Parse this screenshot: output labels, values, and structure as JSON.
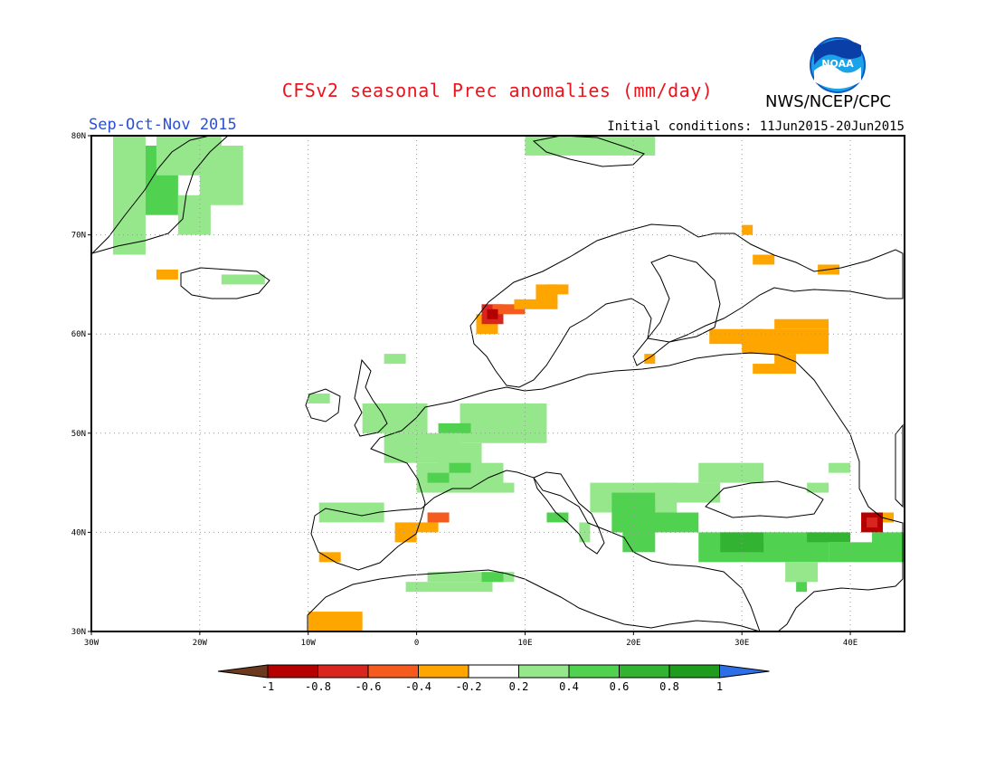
{
  "header": {
    "title": "CFSv2 seasonal Prec anomalies (mm/day)",
    "season": "Sep-Oct-Nov 2015",
    "initial_conditions": "Initial conditions: 11Jun2015-20Jun2015",
    "organization": "NWS/NCEP/CPC",
    "logo_text": "NOAA"
  },
  "map": {
    "region": "Europe",
    "lon_range": [
      -30,
      45
    ],
    "lat_range": [
      30,
      80
    ],
    "lon_ticks": [
      "30W",
      "20W",
      "10W",
      "0",
      "10E",
      "20E",
      "30E",
      "40E"
    ],
    "lat_ticks": [
      "80N",
      "70N",
      "60N",
      "50N",
      "40N",
      "30N"
    ],
    "grid": "dotted"
  },
  "legend": {
    "labels": [
      "-1",
      "-0.8",
      "-0.6",
      "-0.4",
      "-0.2",
      "0.2",
      "0.4",
      "0.6",
      "0.8",
      "1"
    ],
    "colors": [
      "#6b3a1e",
      "#b40000",
      "#d8261e",
      "#f55a1e",
      "#ffa500",
      "#ffffff",
      "#96e68c",
      "#50d250",
      "#32b432",
      "#1e9c1e",
      "#2e6ee6"
    ]
  },
  "colors": {
    "dry_dark": "#b40000",
    "dry_red": "#d8261e",
    "dry_orange_red": "#f55a1e",
    "dry_orange": "#ffa500",
    "wet_light": "#96e68c",
    "wet_mid": "#50d250",
    "wet_dark": "#32b432"
  }
}
